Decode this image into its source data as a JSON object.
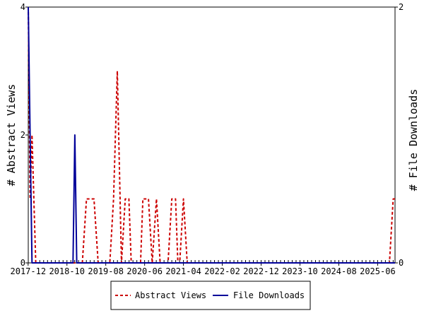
{
  "chart_data": {
    "type": "line",
    "title": "",
    "ylabel_left": "# Abstract Views",
    "ylabel_right": "# File Downloads",
    "ylim_left": [
      0,
      4
    ],
    "ylim_right": [
      0,
      2
    ],
    "yticks_left": [
      0,
      2,
      4
    ],
    "yticks_right": [
      0,
      2
    ],
    "xlim": [
      2017.92,
      2025.79
    ],
    "xtick_labels": [
      "2017-12",
      "2018-10",
      "2019-08",
      "2020-06",
      "2021-04",
      "2022-02",
      "2022-12",
      "2023-10",
      "2024-08",
      "2025-06"
    ],
    "xtick_positions": [
      2017.917,
      2018.75,
      2019.583,
      2020.417,
      2021.25,
      2022.083,
      2022.917,
      2023.75,
      2024.583,
      2025.417
    ],
    "grid": false,
    "legend": "bottom",
    "colors": {
      "abstract_views": "#cc0000",
      "file_downloads": "#000099"
    },
    "series": [
      {
        "name": "Abstract Views",
        "axis": "left",
        "style": "dashed",
        "x": [
          2017.92,
          2017.96,
          2018.0,
          2018.04,
          2018.08,
          2018.13,
          2018.17,
          2018.21,
          2018.25,
          2018.33,
          2018.42,
          2018.5,
          2018.58,
          2018.67,
          2018.75,
          2018.83,
          2018.92,
          2019.0,
          2019.08,
          2019.17,
          2019.25,
          2019.33,
          2019.42,
          2019.5,
          2019.58,
          2019.67,
          2019.75,
          2019.83,
          2019.92,
          2020.0,
          2020.04,
          2020.08,
          2020.13,
          2020.17,
          2020.21,
          2020.25,
          2020.33,
          2020.38,
          2020.42,
          2020.5,
          2020.58,
          2020.67,
          2020.75,
          2020.83,
          2020.92,
          2021.0,
          2021.04,
          2021.08,
          2021.13,
          2021.17,
          2021.25,
          2021.33,
          2021.42,
          2021.5,
          2021.58,
          2021.67,
          2021.75,
          2021.83,
          2021.92,
          2022.0,
          2022.08,
          2022.25,
          2022.5,
          2022.75,
          2023.0,
          2023.25,
          2023.5,
          2023.75,
          2024.0,
          2024.25,
          2024.5,
          2024.58,
          2024.67,
          2024.75,
          2024.83,
          2025.0,
          2025.25,
          2025.5,
          2025.58,
          2025.67,
          2025.75,
          2025.79
        ],
        "values": [
          4,
          1,
          2,
          1,
          0,
          0,
          0,
          0,
          0,
          0,
          0,
          0,
          0,
          0,
          0,
          0,
          0,
          0,
          0,
          1,
          1,
          1,
          0,
          0,
          0,
          0,
          1,
          3,
          0,
          1,
          1,
          1,
          0,
          0,
          0,
          0,
          0,
          1,
          1,
          1,
          0,
          1,
          0,
          0,
          0,
          1,
          1,
          1,
          0,
          0,
          1,
          0,
          0,
          0,
          0,
          0,
          0,
          0,
          0,
          0,
          0,
          0,
          0,
          0,
          0,
          0,
          0,
          0,
          0,
          0,
          0,
          0,
          0,
          0,
          0,
          0,
          0,
          0,
          0,
          0,
          1,
          1
        ]
      },
      {
        "name": "File Downloads",
        "axis": "right",
        "style": "solid",
        "x": [
          2017.92,
          2017.96,
          2018.0,
          2018.04,
          2018.08,
          2018.13,
          2018.25,
          2018.5,
          2018.75,
          2018.83,
          2018.88,
          2018.92,
          2018.96,
          2019.0,
          2019.04,
          2019.08,
          2019.25,
          2019.5,
          2019.75,
          2020.0,
          2020.5,
          2021.0,
          2021.5,
          2022.0,
          2022.5,
          2023.0,
          2023.5,
          2024.0,
          2024.5,
          2025.0,
          2025.5,
          2025.79
        ],
        "values": [
          2,
          1,
          0,
          0,
          0,
          0,
          0,
          0,
          0,
          0,
          0,
          1,
          0,
          0,
          0,
          0,
          0,
          0,
          0,
          0,
          0,
          0,
          0,
          0,
          0,
          0,
          0,
          0,
          0,
          0,
          0,
          0
        ]
      }
    ]
  }
}
